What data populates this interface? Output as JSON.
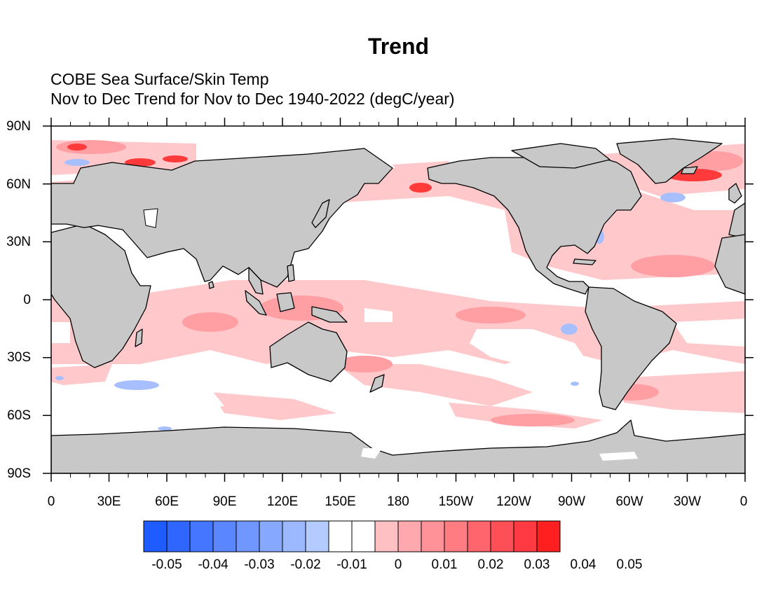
{
  "title": "Trend",
  "subtitle_line1": "COBE Sea Surface/Skin Temp",
  "subtitle_line2": "Nov to Dec Trend for Nov to Dec 1940-2022 (degC/year)",
  "lat_labels": [
    "90N",
    "60N",
    "30N",
    "0",
    "30S",
    "60S",
    "90S"
  ],
  "lon_labels": [
    "0",
    "30E",
    "60E",
    "90E",
    "120E",
    "150E",
    "180",
    "150W",
    "120W",
    "90W",
    "60W",
    "30W",
    "0"
  ],
  "colorbar": {
    "labels": [
      "-0.05",
      "-0.04",
      "-0.03",
      "-0.02",
      "-0.01",
      "0",
      "0.01",
      "0.02",
      "0.03",
      "0.04",
      "0.05"
    ],
    "colors": [
      "#1f5cff",
      "#2f66ff",
      "#4476ff",
      "#5a86ff",
      "#7097ff",
      "#86a8ff",
      "#9cb9ff",
      "#b3cbff",
      "#ffffff",
      "#ffffff",
      "#ffc0c4",
      "#ffa9ae",
      "#ff9298",
      "#ff7c82",
      "#ff656c",
      "#ff4f56",
      "#ff3a42",
      "#ff1f1f"
    ]
  },
  "colors": {
    "land": "#c8c8c8",
    "ocean_neutral": "#ffffff",
    "warm_light": "#ffc9cc",
    "warm_mid": "#ff9ea3",
    "warm_strong": "#ff3a3a",
    "cool": "#a7bfff"
  }
}
